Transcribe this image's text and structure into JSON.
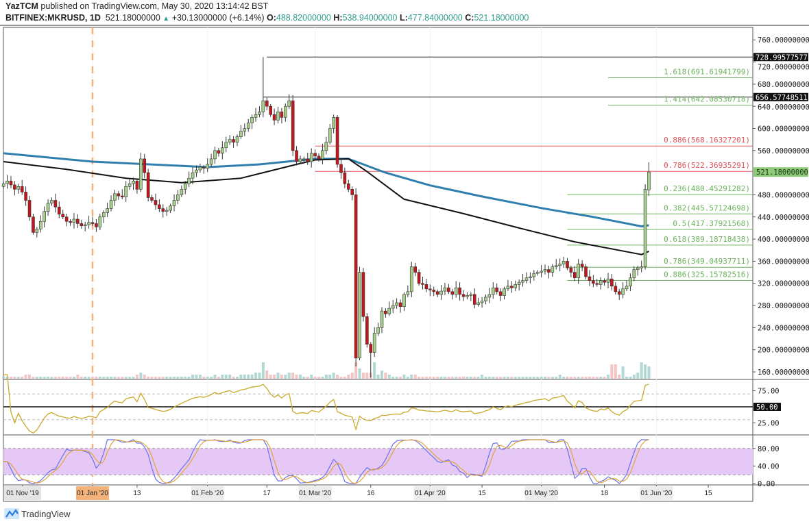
{
  "header": {
    "author": "YazTCM",
    "published": "published on TradingView.com, May 30, 2020 13:14:42 BST",
    "symbol": "BITFINEX:MKRUSD, 1D",
    "last": "521.18000000",
    "change": "+30.13000000 (+6.14%)",
    "o_label": "O:",
    "o": "488.82000000",
    "h_label": "H:",
    "h": "538.94000000",
    "l_label": "L:",
    "l": "477.84000000",
    "c_label": "C:",
    "c": "521.18000000"
  },
  "footer": {
    "brand": "TradingView"
  },
  "colors": {
    "up": "#a6d08a",
    "down": "#c4161c",
    "ma_blue": "#2f7fae",
    "ma_black": "#111111",
    "fib_green": "#6cb35c",
    "fib_red": "#e0525a",
    "rsi": "#c9a82a",
    "stoch_k": "#6a72e8",
    "stoch_d": "#e0a33c",
    "stoch_band": "#e6c8f7",
    "text_teal": "#2e9c8a"
  },
  "chart_data": {
    "type": "candlestick",
    "interval": "1D",
    "x_start": "2019-12-08",
    "close": [
      500,
      505,
      498,
      490,
      495,
      485,
      470,
      440,
      412,
      418,
      432,
      450,
      465,
      470,
      458,
      445,
      440,
      432,
      430,
      436,
      428,
      424,
      426,
      430,
      428,
      422,
      440,
      448,
      455,
      470,
      482,
      478,
      476,
      495,
      500,
      505,
      490,
      545,
      520,
      475,
      470,
      462,
      455,
      450,
      452,
      460,
      470,
      480,
      490,
      500,
      510,
      520,
      525,
      530,
      528,
      535,
      545,
      560,
      555,
      565,
      575,
      580,
      575,
      585,
      595,
      600,
      610,
      620,
      625,
      630,
      650,
      640,
      625,
      615,
      630,
      620,
      640,
      650,
      560,
      540,
      545,
      545,
      540,
      555,
      550,
      545,
      560,
      575,
      600,
      620,
      535,
      520,
      500,
      490,
      480,
      185,
      340,
      260,
      210,
      195,
      230,
      240,
      270,
      265,
      275,
      280,
      285,
      278,
      300,
      305,
      350,
      340,
      320,
      318,
      310,
      308,
      305,
      300,
      306,
      312,
      305,
      300,
      312,
      300,
      296,
      298,
      300,
      282,
      285,
      288,
      295,
      300,
      312,
      305,
      298,
      310,
      315,
      312,
      318,
      322,
      325,
      330,
      332,
      338,
      340,
      342,
      345,
      340,
      350,
      352,
      355,
      360,
      348,
      340,
      330,
      355,
      350,
      332,
      325,
      320,
      318,
      325,
      322,
      328,
      315,
      305,
      300,
      310,
      315,
      330,
      345,
      348,
      350,
      490,
      521.18
    ],
    "first_open": 495,
    "last_candle": {
      "open": 488.82,
      "high": 538.94,
      "low": 477.84,
      "close": 521.18
    },
    "notable_highs": {
      "2020-02-16": 729,
      "2020-03-06": 625
    },
    "notable_lows": {
      "2020-03-12": 170,
      "2020-03-16": 150
    },
    "volume": [
      1,
      1,
      1,
      1,
      1,
      1,
      2,
      2,
      1,
      1,
      1,
      1,
      1,
      1,
      1,
      1,
      1,
      1,
      1,
      1,
      2,
      1,
      1,
      1,
      1,
      1,
      1,
      1,
      1,
      1,
      1,
      1,
      1,
      1,
      1,
      1,
      2,
      3,
      2,
      1,
      1,
      1,
      1,
      1,
      1,
      1,
      1,
      1,
      1,
      1,
      1,
      2,
      2,
      2,
      1,
      1,
      1,
      2,
      1,
      2,
      2,
      2,
      1,
      1,
      2,
      2,
      2,
      2,
      3,
      3,
      8,
      4,
      2,
      2,
      3,
      2,
      2,
      3,
      3,
      2,
      2,
      1,
      1,
      2,
      1,
      1,
      1,
      2,
      2,
      3,
      2,
      1,
      1,
      2,
      3,
      8,
      5,
      3,
      3,
      3,
      8,
      2,
      4,
      3,
      2,
      1,
      1,
      1,
      2,
      1,
      2,
      2,
      1,
      1,
      1,
      1,
      1,
      1,
      1,
      1,
      1,
      1,
      1,
      1,
      1,
      1,
      1,
      1,
      1,
      2,
      1,
      1,
      1,
      1,
      1,
      1,
      1,
      1,
      1,
      1,
      1,
      1,
      1,
      1,
      1,
      1,
      1,
      1,
      1,
      1,
      2,
      1,
      1,
      1,
      1,
      1,
      1,
      1,
      1,
      1,
      1,
      1,
      1,
      2,
      7,
      7,
      2,
      6,
      1,
      1,
      2,
      3,
      8,
      7,
      6
    ],
    "moving_averages": [
      {
        "color": "ma_blue",
        "points": [
          [
            "2019-12-08",
            555
          ],
          [
            "2020-01-01",
            540
          ],
          [
            "2020-02-01",
            530
          ],
          [
            "2020-02-15",
            535
          ],
          [
            "2020-03-01",
            545
          ],
          [
            "2020-03-10",
            545
          ],
          [
            "2020-03-20",
            520
          ],
          [
            "2020-04-01",
            497
          ],
          [
            "2020-04-15",
            477
          ],
          [
            "2020-05-01",
            456
          ],
          [
            "2020-05-15",
            440
          ],
          [
            "2020-05-28",
            423
          ],
          [
            "2020-05-30",
            425
          ]
        ]
      },
      {
        "color": "ma_black",
        "points": [
          [
            "2019-12-08",
            540
          ],
          [
            "2019-12-25",
            526
          ],
          [
            "2020-01-10",
            510
          ],
          [
            "2020-01-25",
            502
          ],
          [
            "2020-02-10",
            510
          ],
          [
            "2020-02-25",
            535
          ],
          [
            "2020-03-01",
            543
          ],
          [
            "2020-03-10",
            545
          ],
          [
            "2020-03-15",
            522
          ],
          [
            "2020-03-25",
            472
          ],
          [
            "2020-04-10",
            446
          ],
          [
            "2020-04-25",
            420
          ],
          [
            "2020-05-10",
            395
          ],
          [
            "2020-05-28",
            372
          ],
          [
            "2020-05-30",
            378
          ]
        ]
      }
    ],
    "horizontal_levels": [
      {
        "label": "728.99577577",
        "value": 728.99577577,
        "from": "2020-02-17",
        "color": "#222222",
        "axis_tag": true
      },
      {
        "label": "656.57748511",
        "value": 656.57748511,
        "from": "2020-02-16",
        "color": "#222222",
        "axis_tag": true
      },
      {
        "label": "1.618(691.61941799)",
        "value": 691.61941799,
        "from": "2020-05-19",
        "color": "fib_green"
      },
      {
        "label": "1.414(642.08530718)",
        "value": 642.08530718,
        "from": "2020-05-19",
        "color": "fib_green"
      },
      {
        "label": "0.886(568.16327201)",
        "value": 568.16327201,
        "from": "2020-03-01",
        "color": "fib_red"
      },
      {
        "label": "0.786(522.36935291)",
        "value": 522.36935291,
        "from": "2020-03-01",
        "color": "fib_red"
      },
      {
        "label": "0.236(480.45291282)",
        "value": 480.45291282,
        "from": "2020-05-08",
        "color": "fib_green"
      },
      {
        "label": "0.382(445.57124698)",
        "value": 445.57124698,
        "from": "2020-05-08",
        "color": "fib_green"
      },
      {
        "label": "0.5(417.37921568)",
        "value": 417.37921568,
        "from": "2020-05-08",
        "color": "fib_green"
      },
      {
        "label": "0.618(389.18718438)",
        "value": 389.18718438,
        "from": "2020-05-08",
        "color": "fib_green"
      },
      {
        "label": "0.786(349.04937711)",
        "value": 349.04937711,
        "from": "2020-05-08",
        "color": "fib_green"
      },
      {
        "label": "0.886(325.15782516)",
        "value": 325.15782516,
        "from": "2020-05-08",
        "color": "fib_green"
      }
    ],
    "marker_date": "2020-01-01",
    "current_price_tag": "521.18000000",
    "y_ticks": [
      "760.00000000",
      "720.00000000",
      "680.00000000",
      "640.00000000",
      "600.00000000",
      "560.00000000",
      "480.00000000",
      "440.00000000",
      "400.00000000",
      "360.00000000",
      "320.00000000",
      "280.00000000",
      "240.00000000",
      "200.00000000",
      "160.00000000"
    ],
    "ylim": [
      150,
      770
    ],
    "x_ticks": [
      {
        "date": "2019-11-01",
        "label": "01 Nov '19",
        "pinned": true
      },
      {
        "date": "2020-01-01",
        "label": "01 Jan '20",
        "highlight": true
      },
      {
        "date": "2020-01-13",
        "label": "13"
      },
      {
        "date": "2020-02-01",
        "label": "01 Feb '20"
      },
      {
        "date": "2020-02-17",
        "label": "17"
      },
      {
        "date": "2020-03-01",
        "label": "01 Mar '20"
      },
      {
        "date": "2020-03-16",
        "label": "16"
      },
      {
        "date": "2020-04-01",
        "label": "01 Apr '20"
      },
      {
        "date": "2020-04-15",
        "label": "15"
      },
      {
        "date": "2020-05-01",
        "label": "01 May '20"
      },
      {
        "date": "2020-05-18",
        "label": "18"
      },
      {
        "date": "2020-06-01",
        "label": "01 Jun '20"
      },
      {
        "date": "2020-06-15",
        "label": "15"
      }
    ],
    "rsi": {
      "ticks": [
        "75.00",
        "25.00"
      ],
      "mid_tag": "50.00",
      "levels": [
        70,
        50,
        30
      ],
      "period": 14
    },
    "stoch_rsi": {
      "ticks": [
        "80.00",
        "40.00",
        "0.00"
      ],
      "band": [
        20,
        80
      ]
    }
  }
}
